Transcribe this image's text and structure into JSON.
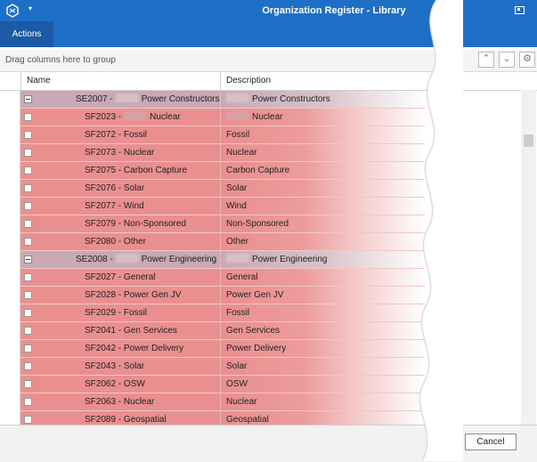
{
  "window": {
    "title": "Organization Register - Library"
  },
  "ribbon": {
    "tabs": [
      {
        "label": "Actions"
      }
    ]
  },
  "toolbar": {
    "group_hint": "Drag columns here to group"
  },
  "grid": {
    "columns": [
      "Name",
      "Description"
    ],
    "rows": [
      {
        "type": "group",
        "name_pre": "SE2007 -",
        "name_post": "Power Constructors",
        "desc_post": "Power Constructors"
      },
      {
        "type": "child",
        "name_pre": "SF2023 -",
        "name_post": "Nuclear",
        "desc_post": "Nuclear",
        "redacted": true
      },
      {
        "type": "child",
        "name": "SF2072 - Fossil",
        "desc": "Fossil"
      },
      {
        "type": "child",
        "name": "SF2073 - Nuclear",
        "desc": "Nuclear"
      },
      {
        "type": "child",
        "name": "SF2075 - Carbon Capture",
        "desc": "Carbon Capture"
      },
      {
        "type": "child",
        "name": "SF2076 - Solar",
        "desc": "Solar"
      },
      {
        "type": "child",
        "name": "SF2077 - Wind",
        "desc": "Wind"
      },
      {
        "type": "child",
        "name": "SF2079 - Non-Sponsored",
        "desc": "Non-Sponsored"
      },
      {
        "type": "child",
        "name": "SF2080 - Other",
        "desc": "Other"
      },
      {
        "type": "group",
        "name_pre": "SE2008 -",
        "name_post": "Power Engineering",
        "desc_post": "Power Engineering"
      },
      {
        "type": "child",
        "name": "SF2027 - General",
        "desc": "General"
      },
      {
        "type": "child",
        "name": "SF2028 - Power Gen JV",
        "desc": "Power Gen JV"
      },
      {
        "type": "child",
        "name": "SF2029 - Fossil",
        "desc": "Fossil"
      },
      {
        "type": "child",
        "name": "SF2041 - Gen Services",
        "desc": "Gen Services"
      },
      {
        "type": "child",
        "name": "SF2042 - Power Delivery",
        "desc": "Power Delivery"
      },
      {
        "type": "child",
        "name": "SF2043 - Solar",
        "desc": "Solar"
      },
      {
        "type": "child",
        "name": "SF2062 - OSW",
        "desc": "OSW"
      },
      {
        "type": "child",
        "name": "SF2063 - Nuclear",
        "desc": "Nuclear"
      },
      {
        "type": "child",
        "name": "SF2089 - Geospatial",
        "desc": "Geospatial"
      }
    ]
  },
  "footer": {
    "cancel_label": "Cancel"
  },
  "colors": {
    "accent": "#1e6fc6",
    "child_row": "#ea8f8f",
    "group_row": "#c8a9b5"
  },
  "icons": [
    "app-icon",
    "quick-access-arrow-icon",
    "restore-icon",
    "chevron-up-icon",
    "chevron-down-icon",
    "gear-icon"
  ]
}
